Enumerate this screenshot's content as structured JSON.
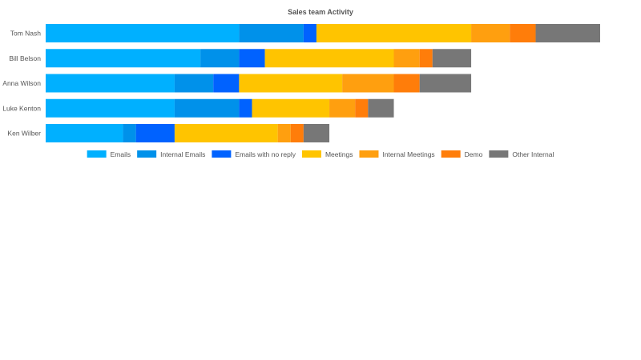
{
  "chart_data": {
    "type": "bar",
    "orientation": "horizontal",
    "stacked": true,
    "title": "Sales team Activity",
    "xlabel": "",
    "ylabel": "",
    "xlim": [
      0,
      43
    ],
    "grid": false,
    "legend_position": "bottom",
    "categories": [
      "Tom Nash",
      "Bill Belson",
      "Anna Wilson",
      "Luke Kenton",
      "Ken Wilber"
    ],
    "series": [
      {
        "name": "Emails",
        "color": "#00b0ff",
        "values": [
          15,
          12,
          10,
          10,
          6
        ]
      },
      {
        "name": "Internal Emails",
        "color": "#0091ea",
        "values": [
          5,
          3,
          3,
          5,
          1
        ]
      },
      {
        "name": "Emails with no reply",
        "color": "#0062ff",
        "values": [
          1,
          2,
          2,
          1,
          3
        ]
      },
      {
        "name": "Meetings",
        "color": "#ffc400",
        "values": [
          12,
          10,
          8,
          6,
          8
        ]
      },
      {
        "name": "Internal Meetings",
        "color": "#ff9f0f",
        "values": [
          3,
          2,
          4,
          2,
          1
        ]
      },
      {
        "name": "Demo",
        "color": "#ff7d0a",
        "values": [
          2,
          1,
          2,
          1,
          1
        ]
      },
      {
        "name": "Other Internal",
        "color": "#777777",
        "values": [
          5,
          3,
          4,
          2,
          2
        ]
      }
    ]
  }
}
